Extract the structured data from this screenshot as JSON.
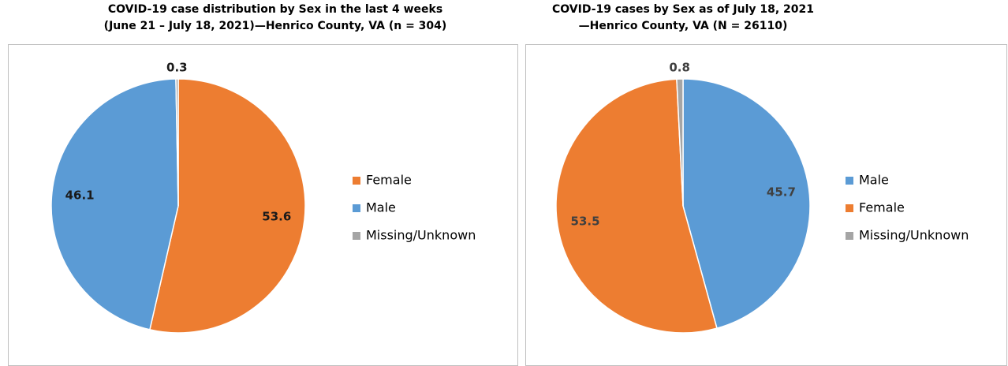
{
  "chart_data": [
    {
      "type": "pie",
      "title": [
        "COVID-19 case distribution by Sex in the last 4 weeks",
        "(June 21 – July 18, 2021)—Henrico County, VA (n = 304)"
      ],
      "categories": [
        "Female",
        "Male",
        "Missing/Unknown"
      ],
      "values": [
        53.6,
        46.1,
        0.3
      ],
      "colors": [
        "#ed7d31",
        "#5b9bd5",
        "#a5a5a5"
      ]
    },
    {
      "type": "pie",
      "title": [
        "COVID-19 cases by Sex as of July 18, 2021",
        "—Henrico County, VA (N = 26110)"
      ],
      "categories": [
        "Male",
        "Female",
        "Missing/Unknown"
      ],
      "values": [
        45.7,
        53.5,
        0.8
      ],
      "colors": [
        "#5b9bd5",
        "#ed7d31",
        "#a5a5a5"
      ]
    }
  ]
}
